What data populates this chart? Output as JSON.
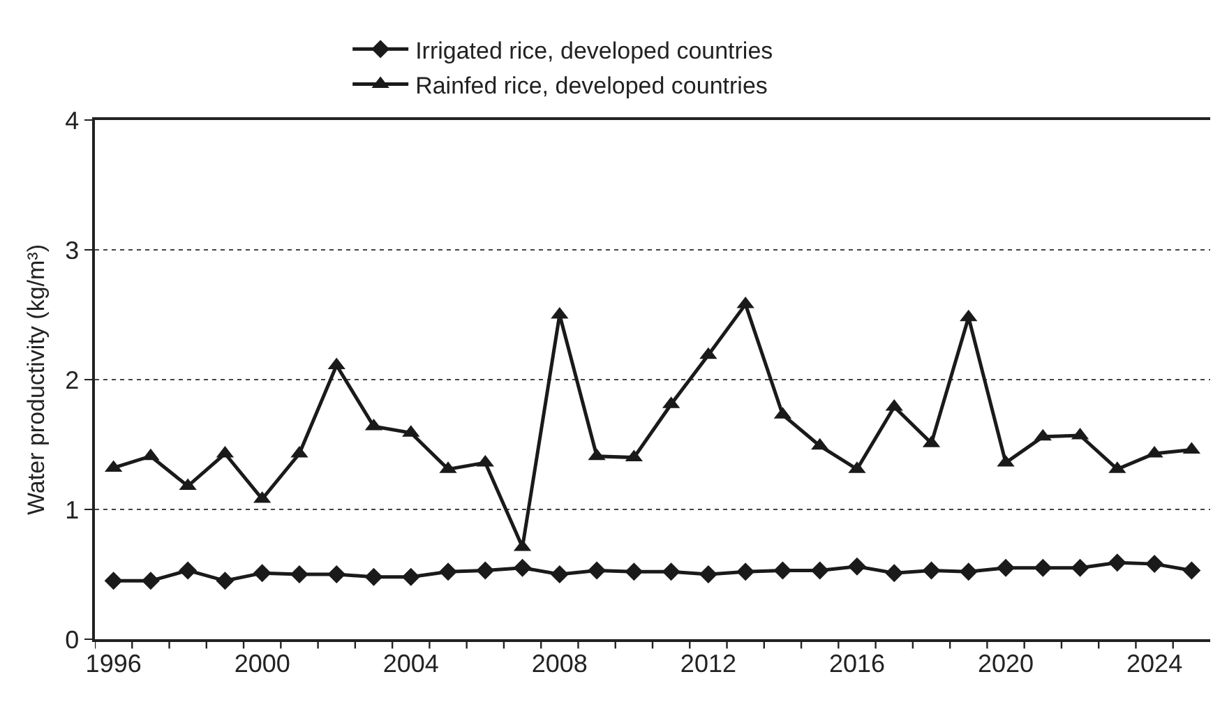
{
  "chart_data": {
    "type": "line",
    "ylabel": "Water productivity (kg/m³)",
    "x": [
      1996,
      1997,
      1998,
      1999,
      2000,
      2001,
      2002,
      2003,
      2004,
      2005,
      2006,
      2007,
      2008,
      2009,
      2010,
      2011,
      2012,
      2013,
      2014,
      2015,
      2016,
      2017,
      2018,
      2019,
      2020,
      2021,
      2022,
      2023,
      2024,
      2025
    ],
    "series": [
      {
        "name": "Irrigated rice, developed countries",
        "color": "#1a1a1a",
        "marker": "diamond",
        "values": [
          0.45,
          0.45,
          0.53,
          0.45,
          0.51,
          0.5,
          0.5,
          0.48,
          0.48,
          0.52,
          0.53,
          0.55,
          0.5,
          0.53,
          0.52,
          0.52,
          0.5,
          0.52,
          0.53,
          0.53,
          0.56,
          0.51,
          0.53,
          0.52,
          0.55,
          0.55,
          0.55,
          0.59,
          0.58,
          0.53
        ]
      },
      {
        "name": "Rainfed rice, developed countries",
        "color": "#1a1a1a",
        "marker": "triangle",
        "values": [
          1.32,
          1.41,
          1.18,
          1.43,
          1.08,
          1.43,
          2.11,
          1.64,
          1.59,
          1.31,
          1.36,
          0.71,
          2.5,
          1.41,
          1.4,
          1.81,
          2.19,
          2.58,
          1.73,
          1.49,
          1.31,
          1.79,
          1.51,
          2.48,
          1.36,
          1.56,
          1.57,
          1.31,
          1.43,
          1.46
        ]
      }
    ],
    "xlim": [
      1995.5,
      2025.5
    ],
    "xticks": [
      1996,
      2000,
      2004,
      2008,
      2012,
      2016,
      2020,
      2024,
      {
        "value": 1995.5,
        "label": null
      },
      {
        "value": 1996.5,
        "label": null
      },
      {
        "value": 1997.5,
        "label": null
      },
      {
        "value": 1998.5,
        "label": null
      },
      {
        "value": 1999.5,
        "label": null
      },
      {
        "value": 2000.5,
        "label": null
      },
      {
        "value": 2001.5,
        "label": null
      },
      {
        "value": 2002.5,
        "label": null
      },
      {
        "value": 2003.5,
        "label": null
      },
      {
        "value": 2004.5,
        "label": null
      },
      {
        "value": 2005.5,
        "label": null
      },
      {
        "value": 2006.5,
        "label": null
      },
      {
        "value": 2007.5,
        "label": null
      },
      {
        "value": 2008.5,
        "label": null
      },
      {
        "value": 2009.5,
        "label": null
      },
      {
        "value": 2010.5,
        "label": null
      },
      {
        "value": 2011.5,
        "label": null
      },
      {
        "value": 2012.5,
        "label": null
      },
      {
        "value": 2013.5,
        "label": null
      },
      {
        "value": 2014.5,
        "label": null
      },
      {
        "value": 2015.5,
        "label": null
      },
      {
        "value": 2016.5,
        "label": null
      },
      {
        "value": 2017.5,
        "label": null
      },
      {
        "value": 2018.5,
        "label": null
      },
      {
        "value": 2019.5,
        "label": null
      },
      {
        "value": 2020.5,
        "label": null
      },
      {
        "value": 2021.5,
        "label": null
      },
      {
        "value": 2022.5,
        "label": null
      },
      {
        "value": 2023.5,
        "label": null
      },
      {
        "value": 2024.5,
        "label": null
      }
    ],
    "ylim": [
      0,
      4
    ],
    "yticks": [
      0,
      1,
      2,
      3,
      4
    ],
    "grid": "y",
    "legend": "top",
    "line_style": "solid"
  }
}
